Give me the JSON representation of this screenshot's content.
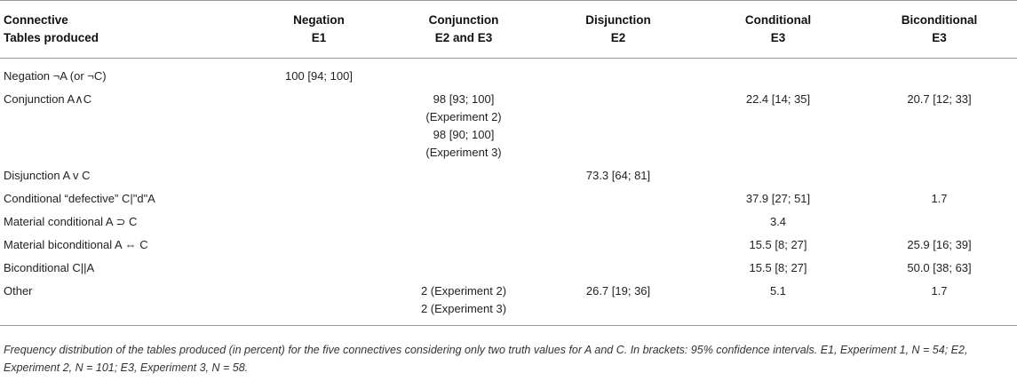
{
  "header": {
    "col0": {
      "l1": "Connective",
      "l2": "Tables produced"
    },
    "col1": {
      "l1": "Negation",
      "l2": "E1"
    },
    "col2": {
      "l1": "Conjunction",
      "l2": "E2 and E3"
    },
    "col3": {
      "l1": "Disjunction",
      "l2": "E2"
    },
    "col4": {
      "l1": "Conditional",
      "l2": "E3"
    },
    "col5": {
      "l1": "Biconditional",
      "l2": "E3"
    }
  },
  "rows": [
    {
      "label": "Negation ¬A (or ¬C)",
      "neg": "100 [94; 100]",
      "conj": [],
      "disj": "",
      "cond": "",
      "bicond": ""
    },
    {
      "label": "Conjunction A∧C",
      "neg": "",
      "conj": [
        "98 [93; 100]",
        "(Experiment 2)",
        "98 [90; 100]",
        "(Experiment 3)"
      ],
      "disj": "",
      "cond": "22.4 [14; 35]",
      "bicond": "20.7 [12; 33]"
    },
    {
      "label": "Disjunction A v C",
      "neg": "",
      "conj": [],
      "disj": "73.3 [64; 81]",
      "cond": "",
      "bicond": ""
    },
    {
      "label": "Conditional “defective” C|\"d\"A",
      "neg": "",
      "conj": [],
      "disj": "",
      "cond": "37.9 [27; 51]",
      "bicond": "1.7"
    },
    {
      "label": "Material conditional A ⊃ C",
      "neg": "",
      "conj": [],
      "disj": "",
      "cond": "3.4",
      "bicond": ""
    },
    {
      "label": "Material biconditional A ⇔ C",
      "neg": "",
      "conj": [],
      "disj": "",
      "cond": "15.5 [8; 27]",
      "bicond": "25.9 [16; 39]"
    },
    {
      "label": "Biconditional C||A",
      "neg": "",
      "conj": [],
      "disj": "",
      "cond": "15.5 [8; 27]",
      "bicond": "50.0 [38; 63]"
    },
    {
      "label": "Other",
      "neg": "",
      "conj": [
        "2 (Experiment 2)",
        "2 (Experiment 3)"
      ],
      "disj": "26.7 [19; 36]",
      "cond": "5.1",
      "bicond": "1.7"
    }
  ],
  "footnote": "Frequency distribution of the tables produced (in percent) for the five connectives considering only two truth values for A and C. In brackets: 95% confidence intervals. E1, Experiment 1, N = 54; E2, Experiment 2, N = 101; E3, Experiment 3, N = 58."
}
